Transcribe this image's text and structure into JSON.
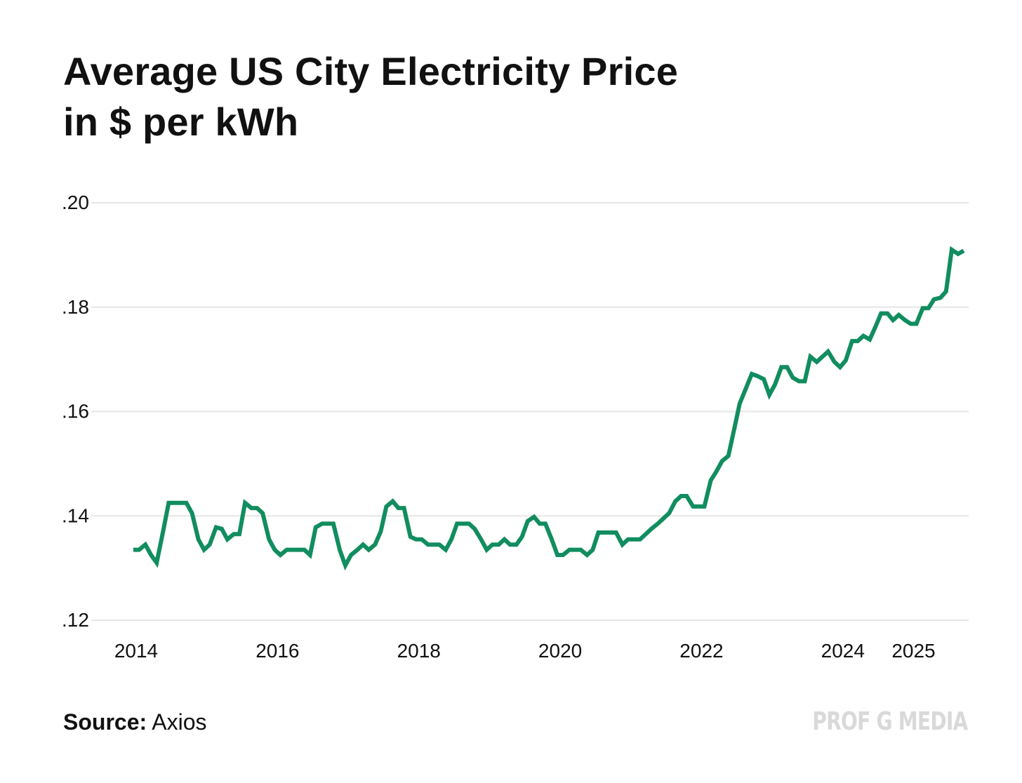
{
  "title": {
    "line1": "Average US City Electricity Price",
    "line2": "in $ per kWh"
  },
  "source": {
    "label": "Source:",
    "value": "Axios"
  },
  "brand": "PROF G MEDIA",
  "colors": {
    "line": "#118d5f",
    "grid": "#e6e6e6",
    "text": "#111111",
    "brand": "#d9d9d9"
  },
  "chart_data": {
    "type": "line",
    "title": "Average US City Electricity Price in $ per kWh",
    "xlabel": "",
    "ylabel": "",
    "x_ticks": [
      {
        "label": "2014",
        "value": 2014.0
      },
      {
        "label": "2016",
        "value": 2016.0
      },
      {
        "label": "2018",
        "value": 2018.0
      },
      {
        "label": "2020",
        "value": 2020.0
      },
      {
        "label": "2022",
        "value": 2022.0
      },
      {
        "label": "2024",
        "value": 2024.0
      },
      {
        "label": "2025",
        "value": 2025.0
      }
    ],
    "y_ticks": [
      {
        "label": ".20",
        "value": 0.2
      },
      {
        "label": ".18",
        "value": 0.18
      },
      {
        "label": ".16",
        "value": 0.16
      },
      {
        "label": ".14",
        "value": 0.14
      },
      {
        "label": ".12",
        "value": 0.12
      }
    ],
    "xlim": [
      2014.0,
      2025.75
    ],
    "ylim": [
      0.12,
      0.2
    ],
    "grid": "horizontal",
    "legend": "none",
    "series": [
      {
        "points": [
          [
            2014.0,
            0.1335
          ],
          [
            2014.08,
            0.1335
          ],
          [
            2014.17,
            0.1345
          ],
          [
            2014.25,
            0.1325
          ],
          [
            2014.33,
            0.131
          ],
          [
            2014.42,
            0.137
          ],
          [
            2014.5,
            0.1425
          ],
          [
            2014.58,
            0.1425
          ],
          [
            2014.67,
            0.1425
          ],
          [
            2014.75,
            0.1425
          ],
          [
            2014.83,
            0.1405
          ],
          [
            2014.92,
            0.1355
          ],
          [
            2015.0,
            0.1335
          ],
          [
            2015.08,
            0.1345
          ],
          [
            2015.17,
            0.1378
          ],
          [
            2015.25,
            0.1375
          ],
          [
            2015.33,
            0.1355
          ],
          [
            2015.42,
            0.1365
          ],
          [
            2015.5,
            0.1365
          ],
          [
            2015.58,
            0.1425
          ],
          [
            2015.67,
            0.1415
          ],
          [
            2015.75,
            0.1415
          ],
          [
            2015.83,
            0.1405
          ],
          [
            2015.92,
            0.1355
          ],
          [
            2016.0,
            0.1335
          ],
          [
            2016.08,
            0.1325
          ],
          [
            2016.17,
            0.1335
          ],
          [
            2016.25,
            0.1335
          ],
          [
            2016.33,
            0.1335
          ],
          [
            2016.42,
            0.1335
          ],
          [
            2016.5,
            0.1325
          ],
          [
            2016.58,
            0.1378
          ],
          [
            2016.67,
            0.1385
          ],
          [
            2016.75,
            0.1385
          ],
          [
            2016.83,
            0.1385
          ],
          [
            2016.92,
            0.1335
          ],
          [
            2017.0,
            0.1305
          ],
          [
            2017.08,
            0.1325
          ],
          [
            2017.17,
            0.1335
          ],
          [
            2017.25,
            0.1345
          ],
          [
            2017.33,
            0.1335
          ],
          [
            2017.42,
            0.1345
          ],
          [
            2017.5,
            0.137
          ],
          [
            2017.58,
            0.1418
          ],
          [
            2017.67,
            0.1428
          ],
          [
            2017.75,
            0.1415
          ],
          [
            2017.83,
            0.1415
          ],
          [
            2017.92,
            0.136
          ],
          [
            2018.0,
            0.1355
          ],
          [
            2018.08,
            0.1355
          ],
          [
            2018.17,
            0.1345
          ],
          [
            2018.25,
            0.1345
          ],
          [
            2018.33,
            0.1345
          ],
          [
            2018.42,
            0.1335
          ],
          [
            2018.5,
            0.1355
          ],
          [
            2018.58,
            0.1385
          ],
          [
            2018.67,
            0.1385
          ],
          [
            2018.75,
            0.1385
          ],
          [
            2018.83,
            0.1375
          ],
          [
            2018.92,
            0.1355
          ],
          [
            2019.0,
            0.1335
          ],
          [
            2019.08,
            0.1345
          ],
          [
            2019.17,
            0.1345
          ],
          [
            2019.25,
            0.1355
          ],
          [
            2019.33,
            0.1345
          ],
          [
            2019.42,
            0.1345
          ],
          [
            2019.5,
            0.136
          ],
          [
            2019.58,
            0.139
          ],
          [
            2019.67,
            0.1398
          ],
          [
            2019.75,
            0.1385
          ],
          [
            2019.83,
            0.1385
          ],
          [
            2019.92,
            0.1355
          ],
          [
            2020.0,
            0.1325
          ],
          [
            2020.08,
            0.1325
          ],
          [
            2020.17,
            0.1335
          ],
          [
            2020.25,
            0.1335
          ],
          [
            2020.33,
            0.1335
          ],
          [
            2020.42,
            0.1325
          ],
          [
            2020.5,
            0.1335
          ],
          [
            2020.58,
            0.1368
          ],
          [
            2020.67,
            0.1368
          ],
          [
            2020.75,
            0.1368
          ],
          [
            2020.83,
            0.1368
          ],
          [
            2020.92,
            0.1345
          ],
          [
            2021.0,
            0.1355
          ],
          [
            2021.08,
            0.1355
          ],
          [
            2021.17,
            0.1355
          ],
          [
            2021.25,
            0.1365
          ],
          [
            2021.33,
            0.1375
          ],
          [
            2021.42,
            0.1385
          ],
          [
            2021.5,
            0.1395
          ],
          [
            2021.58,
            0.1405
          ],
          [
            2021.67,
            0.1428
          ],
          [
            2021.75,
            0.1438
          ],
          [
            2021.83,
            0.1438
          ],
          [
            2021.92,
            0.1418
          ],
          [
            2022.0,
            0.1418
          ],
          [
            2022.08,
            0.1418
          ],
          [
            2022.17,
            0.1468
          ],
          [
            2022.25,
            0.1485
          ],
          [
            2022.33,
            0.1505
          ],
          [
            2022.42,
            0.1515
          ],
          [
            2022.5,
            0.1565
          ],
          [
            2022.58,
            0.1615
          ],
          [
            2022.67,
            0.1645
          ],
          [
            2022.75,
            0.1672
          ],
          [
            2022.83,
            0.1668
          ],
          [
            2022.92,
            0.1662
          ],
          [
            2023.0,
            0.1632
          ],
          [
            2023.08,
            0.1652
          ],
          [
            2023.17,
            0.1685
          ],
          [
            2023.25,
            0.1685
          ],
          [
            2023.33,
            0.1665
          ],
          [
            2023.42,
            0.1658
          ],
          [
            2023.5,
            0.1658
          ],
          [
            2023.58,
            0.1705
          ],
          [
            2023.67,
            0.1695
          ],
          [
            2023.75,
            0.1705
          ],
          [
            2023.83,
            0.1715
          ],
          [
            2023.92,
            0.1695
          ],
          [
            2024.0,
            0.1685
          ],
          [
            2024.08,
            0.1698
          ],
          [
            2024.17,
            0.1735
          ],
          [
            2024.25,
            0.1735
          ],
          [
            2024.33,
            0.1745
          ],
          [
            2024.42,
            0.1738
          ],
          [
            2024.5,
            0.1762
          ],
          [
            2024.58,
            0.1788
          ],
          [
            2024.67,
            0.1788
          ],
          [
            2024.75,
            0.1775
          ],
          [
            2024.83,
            0.1785
          ],
          [
            2024.92,
            0.1775
          ],
          [
            2025.0,
            0.1768
          ],
          [
            2025.08,
            0.1768
          ],
          [
            2025.17,
            0.1798
          ],
          [
            2025.25,
            0.1798
          ],
          [
            2025.33,
            0.1815
          ],
          [
            2025.42,
            0.1818
          ],
          [
            2025.5,
            0.183
          ],
          [
            2025.58,
            0.191
          ],
          [
            2025.67,
            0.1902
          ],
          [
            2025.75,
            0.1908
          ]
        ]
      }
    ]
  }
}
